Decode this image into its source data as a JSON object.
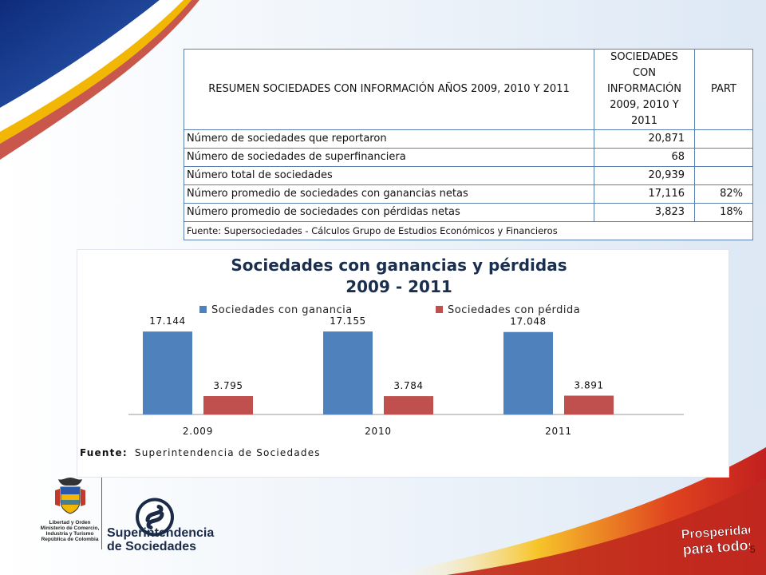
{
  "table": {
    "header": {
      "title": "RESUMEN SOCIEDADES CON INFORMACIÓN AÑOS 2009, 2010 Y 2011",
      "col2": [
        "SOCIEDADES",
        "CON",
        "INFORMACIÓN",
        "2009, 2010 Y",
        "2011"
      ],
      "col3": "PART"
    },
    "rows": [
      {
        "label": "Número de sociedades que reportaron",
        "value": "20,871",
        "part": ""
      },
      {
        "label": "Número de sociedades de superfinanciera",
        "value": "68",
        "part": ""
      },
      {
        "label": "Número total de sociedades",
        "value": "20,939",
        "part": ""
      },
      {
        "label": "Número promedio de sociedades con ganancias netas",
        "value": "17,116",
        "part": "82%"
      },
      {
        "label": "Número promedio de sociedades con pérdidas netas",
        "value": "3,823",
        "part": "18%"
      }
    ],
    "source": "Fuente: Supersociedades - Cálculos Grupo de Estudios Económicos y Financieros"
  },
  "chart_data": {
    "type": "bar",
    "title": [
      "Sociedades con ganancias y pérdidas",
      "2009 - 2011"
    ],
    "categories": [
      "2.009",
      "2010",
      "2011"
    ],
    "series": [
      {
        "name": "Sociedades con ganancia",
        "values": [
          17144,
          17155,
          17048
        ],
        "labels": [
          "17.144",
          "17.155",
          "17.048"
        ],
        "color": "#4f81bd"
      },
      {
        "name": "Sociedades con pérdida",
        "values": [
          3795,
          3784,
          3891
        ],
        "labels": [
          "3.795",
          "3.784",
          "3.891"
        ],
        "color": "#c0504d"
      }
    ],
    "legend": "top",
    "grid": false,
    "source_label": "Fuente:",
    "source_text": "Superintendencia de Sociedades"
  },
  "logos": {
    "gov_lines": [
      "Libertad y Orden",
      "Ministerio de Comercio,",
      "Industria y Turismo",
      "República de Colombia"
    ],
    "super_name": [
      "Superintendencia",
      "de Sociedades"
    ],
    "prosperidad": [
      "Prosperidad",
      "para todos"
    ]
  },
  "slide_number": "5",
  "colors": {
    "navy": "#1a3d8f",
    "gold": "#f2b705",
    "red": "#c0392b",
    "bar_blue": "#4f81bd",
    "bar_red": "#c0504d"
  }
}
